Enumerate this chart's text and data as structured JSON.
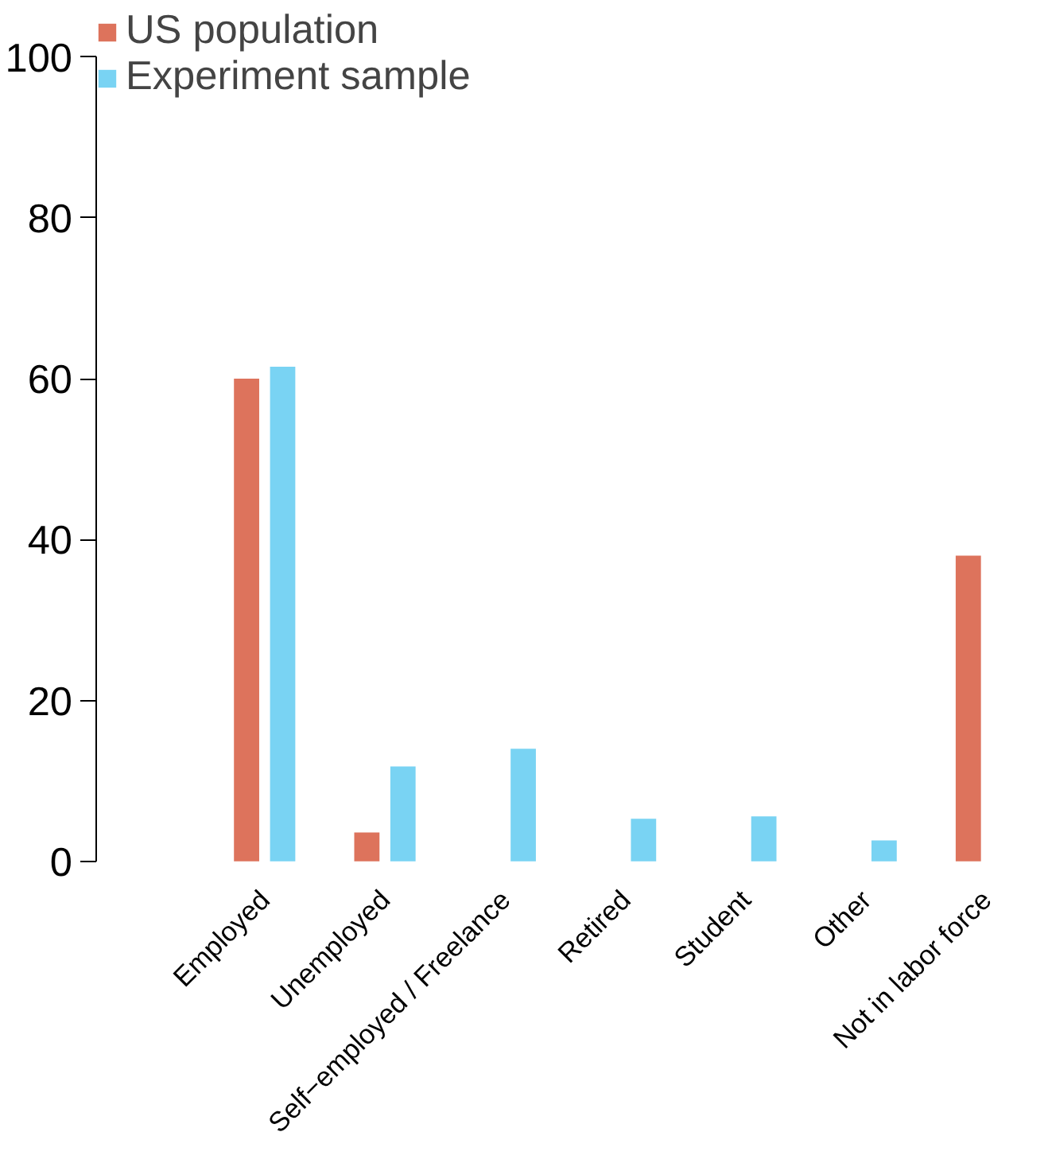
{
  "chart_data": {
    "type": "bar",
    "categories": [
      "Employed",
      "Unemployed",
      "Self−employed / Freelance",
      "Retired",
      "Student",
      "Other",
      "Not in labor force"
    ],
    "series": [
      {
        "name": "US population",
        "color": "#dd735c",
        "values": [
          60,
          3.6,
          null,
          null,
          null,
          null,
          38
        ]
      },
      {
        "name": "Experiment sample",
        "color": "#79d3f3",
        "values": [
          61.5,
          11.8,
          14,
          5.3,
          5.6,
          2.6,
          null
        ]
      }
    ],
    "ylim": [
      0,
      100
    ],
    "yticks": [
      0,
      20,
      40,
      60,
      80,
      100
    ],
    "grid": false,
    "legend": "top left"
  }
}
